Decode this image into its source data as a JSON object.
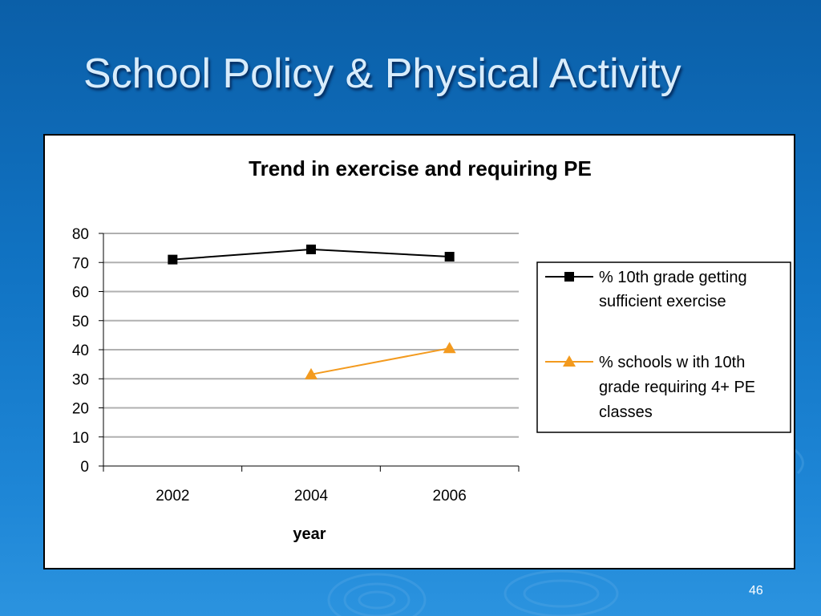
{
  "slide": {
    "title": "School Policy & Physical Activity",
    "page_number": "46"
  },
  "colors": {
    "series1": "#000000",
    "series2": "#f39a1e",
    "grid": "#b0b0b0",
    "title_text": "#d8ecfb"
  },
  "chart_data": {
    "type": "line",
    "title": "Trend in exercise and requiring PE",
    "xlabel": "year",
    "ylabel": "",
    "categories": [
      "2002",
      "2004",
      "2006"
    ],
    "ylim": [
      0,
      80
    ],
    "yticks": [
      0,
      10,
      20,
      30,
      40,
      50,
      60,
      70,
      80
    ],
    "grid": true,
    "legend_position": "right",
    "series": [
      {
        "name": "% 10th grade getting sufficient exercise",
        "legend_lines": [
          "% 10th grade getting",
          "sufficient exercise"
        ],
        "marker": "square",
        "color": "#000000",
        "values": [
          71,
          74.5,
          72
        ]
      },
      {
        "name": "% schools with 10th grade requiring 4+ PE classes",
        "legend_lines": [
          "% schools w ith 10th",
          "grade requiring 4+ PE",
          "classes"
        ],
        "marker": "triangle",
        "color": "#f39a1e",
        "values": [
          null,
          31.5,
          40.5
        ]
      }
    ]
  }
}
